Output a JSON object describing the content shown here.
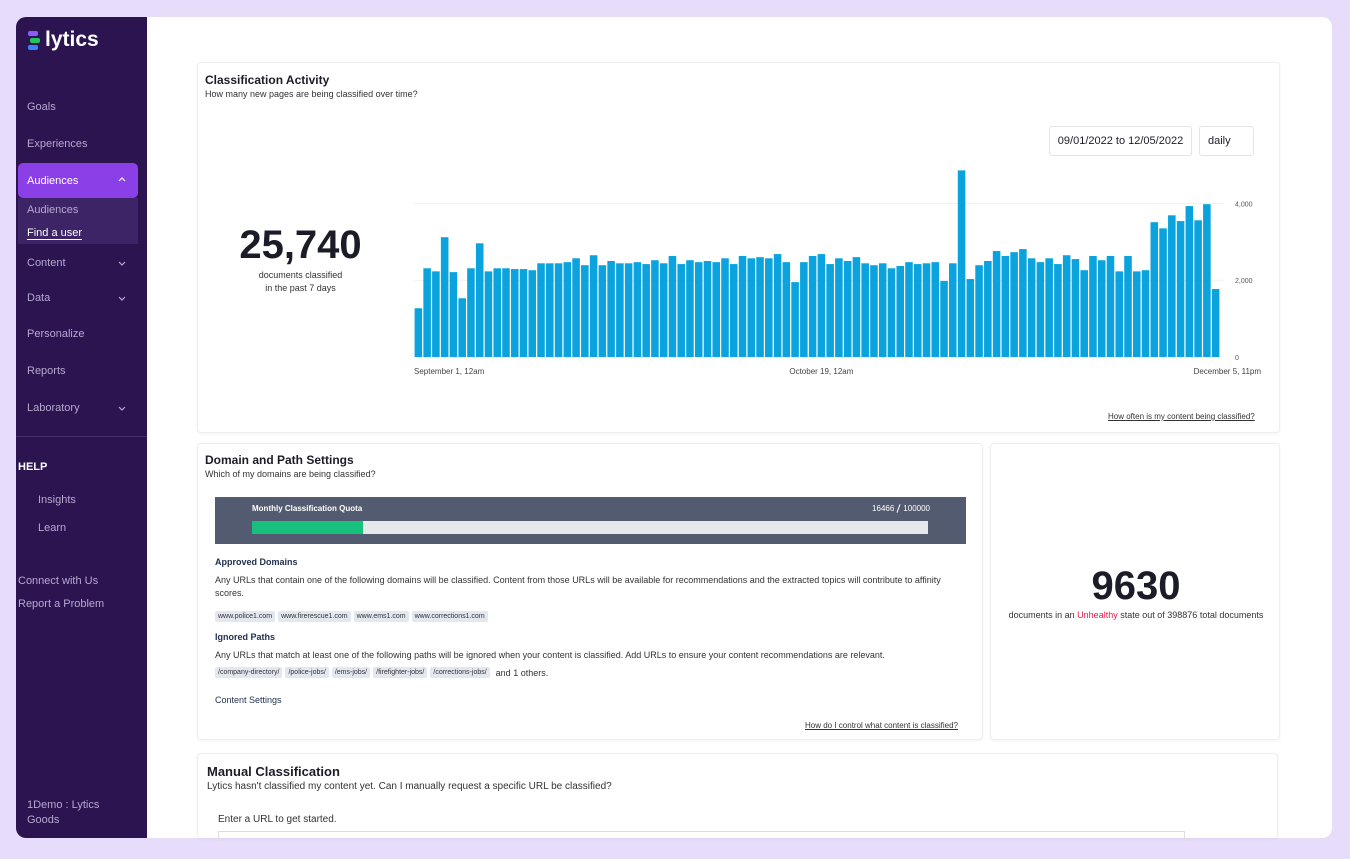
{
  "sidebar": {
    "logo": "lytics",
    "nav": [
      "Goals",
      "Experiences",
      "Audiences",
      "Content",
      "Data",
      "Personalize",
      "Reports",
      "Laboratory"
    ],
    "sub_nav": [
      "Audiences",
      "Find a user"
    ],
    "help_title": "HELP",
    "help": [
      "Insights",
      "Learn"
    ],
    "links": [
      "Connect with Us",
      "Report a Problem"
    ],
    "account": [
      "1Demo : Lytics",
      "Goods"
    ]
  },
  "activity": {
    "title": "Classification Activity",
    "subtitle": "How many new pages are being classified over time?",
    "big_number": "25,740",
    "big_caption": [
      "documents classified",
      "in the past 7 days"
    ],
    "date_range": "09/01/2022 to 12/05/2022",
    "interval": "daily",
    "link": "How often is my content being classified?"
  },
  "chart_data": {
    "type": "bar",
    "color": "#0aa3dd",
    "grid": true,
    "ylim": [
      0,
      5000
    ],
    "yticks": [
      0,
      {
        "value": 2000,
        "label": "2,000"
      },
      {
        "value": 4000,
        "label": "4,000"
      }
    ],
    "categories": [
      "September 1, 12am",
      null,
      null,
      null,
      null,
      null,
      null,
      null,
      null,
      null,
      null,
      null,
      null,
      null,
      null,
      null,
      null,
      null,
      null,
      null,
      null,
      null,
      null,
      null,
      null,
      null,
      null,
      null,
      null,
      null,
      null,
      null,
      null,
      null,
      null,
      null,
      null,
      null,
      null,
      null,
      null,
      null,
      null,
      null,
      null,
      null,
      "October 19, 12am",
      null,
      null,
      null,
      null,
      null,
      null,
      null,
      null,
      null,
      null,
      null,
      null,
      null,
      null,
      null,
      null,
      null,
      null,
      null,
      null,
      null,
      null,
      null,
      null,
      null,
      null,
      null,
      null,
      null,
      null,
      null,
      null,
      null,
      null,
      null,
      null,
      null,
      null,
      null,
      null,
      null,
      null,
      null,
      null,
      "December 5, 11pm"
    ],
    "values": [
      1270,
      2310,
      2230,
      3120,
      2210,
      1530,
      2310,
      2960,
      2230,
      2310,
      2310,
      2290,
      2290,
      2260,
      2440,
      2440,
      2440,
      2470,
      2570,
      2390,
      2650,
      2390,
      2500,
      2440,
      2440,
      2470,
      2420,
      2520,
      2440,
      2630,
      2420,
      2520,
      2470,
      2500,
      2470,
      2570,
      2420,
      2630,
      2570,
      2600,
      2570,
      2680,
      2470,
      1950,
      2470,
      2630,
      2680,
      2420,
      2570,
      2500,
      2600,
      2440,
      2390,
      2440,
      2310,
      2370,
      2470,
      2420,
      2440,
      2470,
      1980,
      2440,
      4860,
      2030,
      2390,
      2500,
      2760,
      2630,
      2730,
      2810,
      2570,
      2470,
      2570,
      2420,
      2650,
      2550,
      2260,
      2630,
      2520,
      2630,
      2230,
      2630,
      2230,
      2260,
      3510,
      3350,
      3690,
      3540,
      3930,
      3560,
      3980,
      1770
    ]
  },
  "domains": {
    "title": "Domain and Path Settings",
    "subtitle": "Which of my domains are being classified?",
    "quota": {
      "label": "Monthly Classification Quota",
      "used": 16466,
      "total": 100000
    },
    "approved_title": "Approved Domains",
    "approved_text": "Any URLs that contain one of the following domains will be classified. Content from those URLs will be available for recommendations and the extracted topics will contribute to affinity scores.",
    "approved": [
      "www.police1.com",
      "www.firerescue1.com",
      "www.ems1.com",
      "www.corrections1.com"
    ],
    "ignored_title": "Ignored Paths",
    "ignored_text": "Any URLs that match at least one of the following paths will be ignored when your content is classified. Add URLs to ensure your content recommendations are relevant.",
    "ignored": [
      "/company-directory/",
      "/police-jobs/",
      "/ems-jobs/",
      "/firefighter-jobs/",
      "/corrections-jobs/"
    ],
    "ignored_more": "and 1 others.",
    "content_settings": "Content Settings",
    "link": "How do I control what content is classified?"
  },
  "health": {
    "count": "9630",
    "prefix": "documents in an",
    "state": "Unhealthy",
    "middle": "state out of",
    "total": "398876",
    "suffix": "total documents"
  },
  "manual": {
    "title": "Manual Classification",
    "subtitle": "Lytics hasn't classified my content yet. Can I manually request a specific URL be classified?",
    "prompt": "Enter a URL to get started."
  }
}
